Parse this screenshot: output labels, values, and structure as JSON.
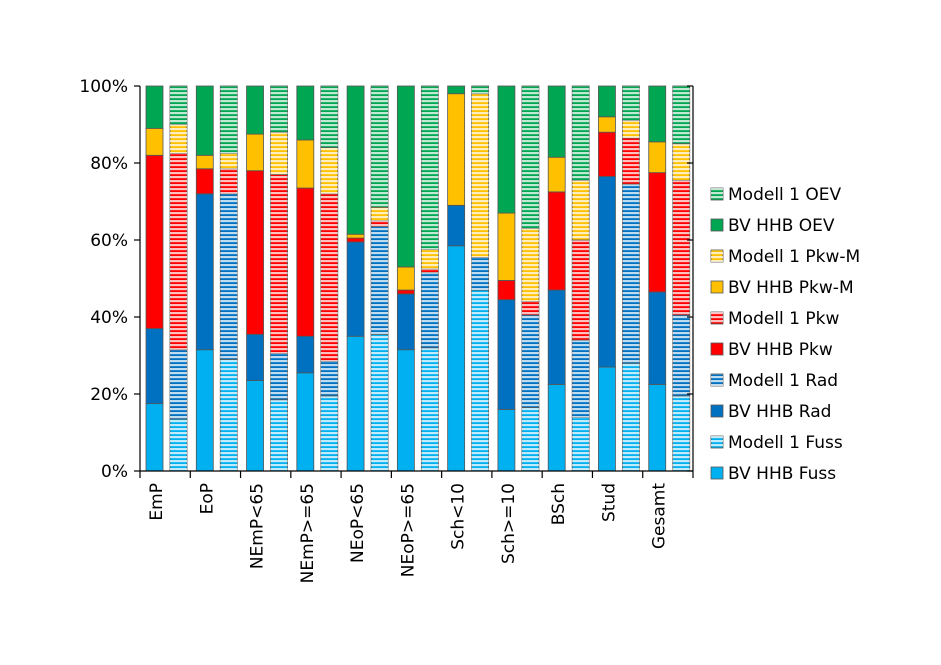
{
  "chart_data": {
    "type": "bar",
    "stacked": true,
    "normalized": true,
    "title": "",
    "xlabel": "",
    "ylabel": "",
    "ylim": [
      0,
      100
    ],
    "y_ticks": [
      "0%",
      "20%",
      "40%",
      "60%",
      "80%",
      "100%"
    ],
    "grid": false,
    "legend_position": "right",
    "categories": [
      "EmP",
      "EoP",
      "NEmP<65",
      "NEmP>=65",
      "NEoP<65",
      "NEoP>=65",
      "Sch<10",
      "Sch>=10",
      "BSch",
      "Stud",
      "Gesamt"
    ],
    "modes": [
      "Fuss",
      "Rad",
      "Pkw",
      "Pkw-M",
      "OEV"
    ],
    "series": [
      {
        "name": "BV HHB",
        "values": [
          [
            17.5,
            19.5,
            45.0,
            7.0,
            11.0
          ],
          [
            31.5,
            40.5,
            6.5,
            3.5,
            18.0
          ],
          [
            23.5,
            12.0,
            42.5,
            9.5,
            12.5
          ],
          [
            25.5,
            9.5,
            38.5,
            12.5,
            14.0
          ],
          [
            35.0,
            24.5,
            1.0,
            1.0,
            38.5
          ],
          [
            31.5,
            14.5,
            1.0,
            6.0,
            47.0
          ],
          [
            58.5,
            10.5,
            0.0,
            29.0,
            2.0
          ],
          [
            16.0,
            28.5,
            5.0,
            17.5,
            33.0
          ],
          [
            22.5,
            24.5,
            25.5,
            9.0,
            18.5
          ],
          [
            27.0,
            49.5,
            11.5,
            4.0,
            8.0
          ],
          [
            22.5,
            24.0,
            31.0,
            8.0,
            14.5
          ]
        ]
      },
      {
        "name": "Modell 1",
        "values": [
          [
            13.5,
            18.0,
            51.0,
            7.5,
            10.0
          ],
          [
            29.0,
            43.0,
            6.5,
            4.0,
            17.5
          ],
          [
            18.5,
            12.0,
            46.5,
            11.0,
            12.0
          ],
          [
            19.5,
            9.0,
            43.5,
            12.0,
            16.0
          ],
          [
            35.5,
            28.0,
            1.5,
            3.5,
            31.5
          ],
          [
            32.0,
            19.5,
            1.0,
            5.0,
            42.5
          ],
          [
            47.0,
            8.5,
            0.0,
            42.5,
            2.0
          ],
          [
            16.5,
            24.0,
            3.5,
            19.0,
            37.0
          ],
          [
            14.0,
            20.0,
            26.0,
            15.5,
            24.5
          ],
          [
            28.0,
            46.5,
            12.0,
            4.5,
            9.0
          ],
          [
            19.5,
            21.0,
            35.0,
            9.5,
            15.0
          ]
        ]
      }
    ],
    "legend": [
      {
        "label": "Modell 1 OEV",
        "color": "#00A651",
        "hatched": true
      },
      {
        "label": "BV HHB OEV",
        "color": "#00A651",
        "hatched": false
      },
      {
        "label": "Modell 1 Pkw-M",
        "color": "#FFC000",
        "hatched": true
      },
      {
        "label": "BV HHB Pkw-M",
        "color": "#FFC000",
        "hatched": false
      },
      {
        "label": "Modell 1 Pkw",
        "color": "#FF0000",
        "hatched": true
      },
      {
        "label": "BV HHB Pkw",
        "color": "#FF0000",
        "hatched": false
      },
      {
        "label": "Modell 1 Rad",
        "color": "#0070C0",
        "hatched": true
      },
      {
        "label": "BV HHB Rad",
        "color": "#0070C0",
        "hatched": false
      },
      {
        "label": "Modell 1 Fuss",
        "color": "#00B0F0",
        "hatched": true
      },
      {
        "label": "BV HHB Fuss",
        "color": "#00B0F0",
        "hatched": false
      }
    ],
    "mode_colors": {
      "Fuss": "#00B0F0",
      "Rad": "#0070C0",
      "Pkw": "#FF0000",
      "Pkw-M": "#FFC000",
      "OEV": "#00A651"
    }
  }
}
